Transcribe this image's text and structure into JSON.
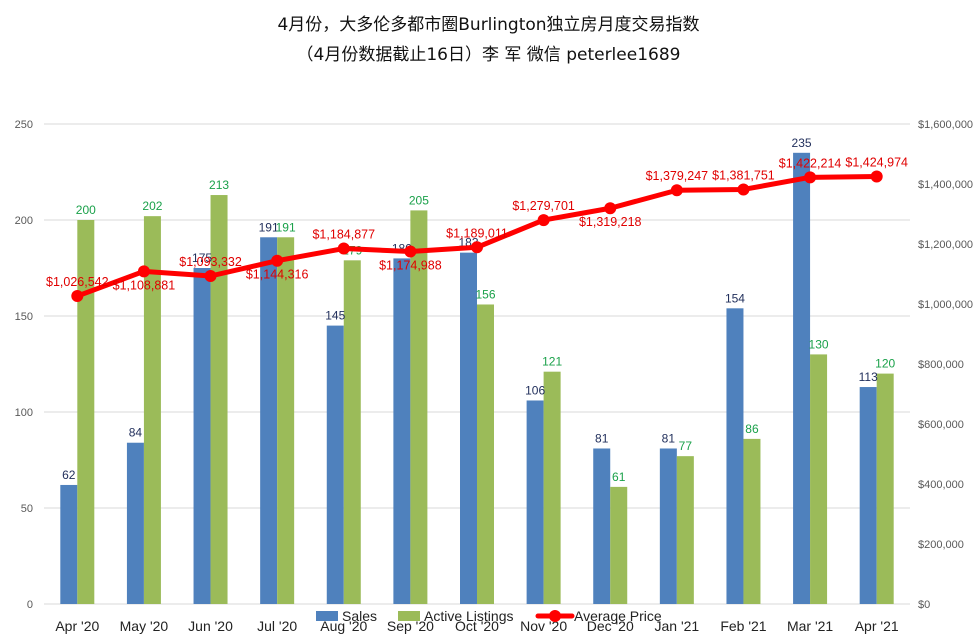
{
  "chart_data": {
    "type": "bar",
    "title": "4月份，大多伦多都市圈Burlington独立房月度交易指数",
    "subtitle": "（4月份数据截止16日）李 军  微信  peterlee1689",
    "categories": [
      "Apr '20",
      "May '20",
      "Jun '20",
      "Jul '20",
      "Aug '20",
      "Sep '20",
      "Oct '20",
      "Nov '20",
      "Dec '20",
      "Jan '21",
      "Feb '21",
      "Mar '21",
      "Apr '21"
    ],
    "series": [
      {
        "name": "Sales",
        "type": "bar",
        "axis": "left",
        "color": "#4f81bd",
        "values": [
          62,
          84,
          175,
          191,
          145,
          180,
          183,
          106,
          81,
          81,
          154,
          235,
          113
        ]
      },
      {
        "name": "Active Listings",
        "type": "bar",
        "axis": "left",
        "color": "#9bbb59",
        "values": [
          200,
          202,
          213,
          191,
          179,
          205,
          156,
          121,
          61,
          77,
          86,
          130,
          120
        ]
      },
      {
        "name": "Average Price",
        "type": "line",
        "axis": "right",
        "color": "#ff0000",
        "values": [
          1026542,
          1108881,
          1093332,
          1144316,
          1184877,
          1174988,
          1189011,
          1279701,
          1319218,
          1379247,
          1381751,
          1422214,
          1424974
        ]
      }
    ],
    "y_left": {
      "min": 0,
      "max": 250,
      "ticks": [
        0,
        50,
        100,
        150,
        200,
        250
      ]
    },
    "y_right": {
      "min": 0,
      "max": 1600000,
      "tick_labels": [
        "$0",
        "$200,000",
        "$400,000",
        "$600,000",
        "$800,000",
        "$1,000,000",
        "$1,200,000",
        "$1,400,000",
        "$1,600,000"
      ]
    },
    "sales_labels": [
      "62",
      "84",
      "175",
      "191",
      "145",
      "180",
      "183",
      "106",
      "81",
      "81",
      "154",
      "235",
      "113"
    ],
    "listing_labels": [
      "200",
      "202",
      "213",
      "191",
      "179",
      "205",
      "156",
      "121",
      "61",
      "77",
      "86",
      "130",
      "120"
    ],
    "price_labels": [
      "$1,026,542",
      "$1,108,881",
      "$1,093,332",
      "$1,144,316",
      "$1,184,877",
      "$1,174,988",
      "$1,189,011",
      "$1,279,701",
      "$1,319,218",
      "$1,379,247",
      "$1,381,751",
      "$1,422,214",
      "$1,424,974"
    ],
    "legend": [
      "Sales",
      "Active Listings",
      "Average Price"
    ],
    "legend_position": "bottom",
    "grid": true
  }
}
